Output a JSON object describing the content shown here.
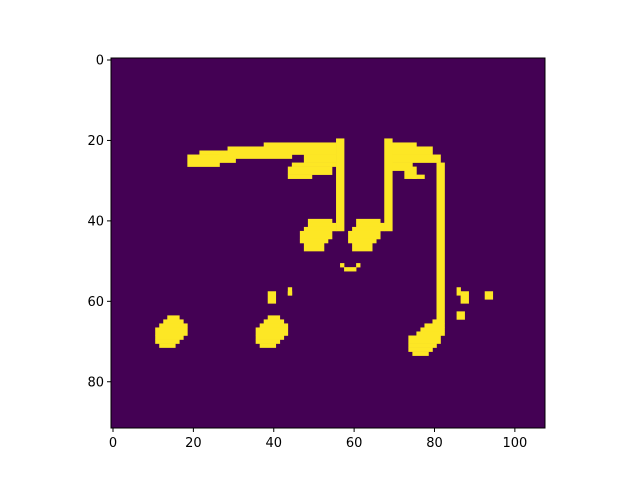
{
  "chart_data": {
    "type": "heatmap",
    "title": "",
    "xlabel": "",
    "ylabel": "",
    "grid": false,
    "colormap": "viridis",
    "colors": {
      "background": "#440154",
      "foreground": "#fde725",
      "axis": "#000000"
    },
    "image_shape": {
      "rows": 92,
      "cols": 108
    },
    "xlim": [
      -0.5,
      107.5
    ],
    "ylim": [
      91.5,
      -0.5
    ],
    "x_ticks": [
      0,
      20,
      40,
      60,
      80,
      100
    ],
    "x_tick_labels": [
      "0",
      "20",
      "40",
      "60",
      "80",
      "100"
    ],
    "y_ticks": [
      0,
      20,
      40,
      60,
      80
    ],
    "y_tick_labels": [
      "0",
      "20",
      "40",
      "60",
      "80"
    ],
    "value_legend": {
      "0": "background",
      "1": "foreground"
    },
    "foreground_rects": [
      [
        39,
        58,
        2,
        3
      ],
      [
        44,
        57,
        1,
        2
      ],
      [
        44,
        58,
        1,
        1
      ],
      [
        86,
        57,
        1,
        2
      ],
      [
        87,
        58,
        2,
        3
      ],
      [
        93,
        58,
        2,
        2
      ],
      [
        19,
        24,
        8,
        3
      ],
      [
        22,
        23,
        5,
        1
      ],
      [
        27,
        23,
        4,
        3
      ],
      [
        29,
        22,
        16,
        3
      ],
      [
        38,
        21,
        6,
        1
      ],
      [
        44,
        21,
        12,
        3
      ],
      [
        56,
        20,
        2,
        23
      ],
      [
        48,
        24,
        8,
        2
      ],
      [
        45,
        26,
        11,
        1
      ],
      [
        44,
        27,
        11,
        2
      ],
      [
        44,
        29,
        6,
        1
      ],
      [
        49,
        40,
        6,
        1
      ],
      [
        49,
        41,
        7,
        1
      ],
      [
        48,
        42,
        8,
        1
      ],
      [
        47,
        43,
        8,
        2
      ],
      [
        47,
        45,
        7,
        1
      ],
      [
        48,
        46,
        5,
        2
      ],
      [
        68,
        20,
        2,
        23
      ],
      [
        70,
        21,
        6,
        1
      ],
      [
        70,
        22,
        10,
        2
      ],
      [
        70,
        24,
        12,
        2
      ],
      [
        70,
        26,
        5,
        2
      ],
      [
        73,
        27,
        3,
        3
      ],
      [
        75,
        29,
        3,
        1
      ],
      [
        81,
        26,
        2,
        40
      ],
      [
        61,
        40,
        6,
        1
      ],
      [
        61,
        41,
        7,
        1
      ],
      [
        60,
        42,
        8,
        1
      ],
      [
        59,
        43,
        8,
        2
      ],
      [
        59,
        45,
        7,
        1
      ],
      [
        60,
        46,
        5,
        2
      ],
      [
        57,
        51,
        1,
        1
      ],
      [
        58,
        52,
        3,
        1
      ],
      [
        61,
        51,
        1,
        1
      ],
      [
        14,
        64,
        3,
        1
      ],
      [
        13,
        65,
        5,
        1
      ],
      [
        12,
        66,
        7,
        1
      ],
      [
        11,
        67,
        8,
        2
      ],
      [
        11,
        69,
        7,
        1
      ],
      [
        11,
        70,
        6,
        1
      ],
      [
        12,
        71,
        4,
        1
      ],
      [
        39,
        64,
        3,
        1
      ],
      [
        38,
        65,
        5,
        1
      ],
      [
        37,
        66,
        7,
        1
      ],
      [
        36,
        67,
        8,
        2
      ],
      [
        36,
        69,
        7,
        1
      ],
      [
        36,
        70,
        6,
        1
      ],
      [
        37,
        71,
        4,
        1
      ],
      [
        80,
        65,
        2,
        1
      ],
      [
        78,
        66,
        5,
        1
      ],
      [
        77,
        67,
        6,
        1
      ],
      [
        76,
        68,
        7,
        1
      ],
      [
        74,
        69,
        8,
        2
      ],
      [
        74,
        71,
        7,
        1
      ],
      [
        74,
        72,
        6,
        1
      ],
      [
        75,
        73,
        4,
        1
      ],
      [
        86,
        63,
        2,
        2
      ]
    ]
  }
}
